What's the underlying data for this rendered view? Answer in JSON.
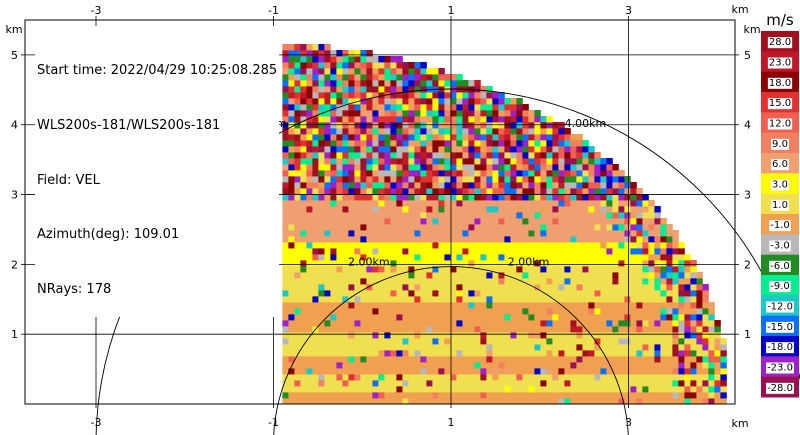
{
  "chart_data": {
    "type": "heatmap",
    "title_block": [
      "Start time: 2022/04/29 10:25:08.285",
      "WLS200s-181/WLS200s-181",
      "Field: VEL",
      "Azimuth(deg): 109.01",
      "NRays: 178"
    ],
    "x_axis": {
      "unit": "km",
      "range": [
        -3.8,
        4.2
      ],
      "ticks": [
        -3,
        -1,
        1,
        3
      ],
      "tick_labels": [
        "-3",
        "-1",
        "1",
        "3"
      ]
    },
    "y_axis": {
      "unit": "km",
      "range": [
        0,
        5.5
      ],
      "ticks": [
        1,
        2,
        3,
        4,
        5
      ],
      "tick_labels": [
        "1",
        "2",
        "3",
        "4",
        "5"
      ]
    },
    "grid": true,
    "range_rings": [
      {
        "radius_km": 2.0,
        "label": "2.00km"
      },
      {
        "radius_km": 4.0,
        "label": "4.00km"
      }
    ],
    "sector": {
      "origin_km": [
        0.0,
        0.0
      ],
      "azimuth_span_deg": [
        0,
        90
      ],
      "max_range_km": 5.1,
      "x_start_km": -0.9
    },
    "bands": [
      {
        "y": [
          0.0,
          0.15
        ],
        "level": "-1.0"
      },
      {
        "y": [
          0.15,
          0.45
        ],
        "level": "1.0"
      },
      {
        "y": [
          0.45,
          0.7
        ],
        "level": "-1.0"
      },
      {
        "y": [
          0.7,
          1.05
        ],
        "level": "1.0"
      },
      {
        "y": [
          1.05,
          1.5
        ],
        "level": "-1.0"
      },
      {
        "y": [
          1.5,
          2.0
        ],
        "level": "1.0"
      },
      {
        "y": [
          2.0,
          2.35
        ],
        "level": "3.0"
      },
      {
        "y": [
          2.35,
          2.9
        ],
        "level": "6.0"
      }
    ],
    "colorbar": {
      "unit": "m/s",
      "labels": [
        "28.0",
        "23.0",
        "18.0",
        "15.0",
        "12.0",
        "9.0",
        "6.0",
        "3.0",
        "1.0",
        "-1.0",
        "-3.0",
        "-6.0",
        "-9.0",
        "-12.0",
        "-15.0",
        "-18.0",
        "-23.0",
        "-28.0"
      ],
      "colors": [
        "#a01020",
        "#c01828",
        "#8b0000",
        "#e03030",
        "#f06050",
        "#f08060",
        "#f0a070",
        "#ffff00",
        "#f0e050",
        "#f0a050",
        "#b8b8b8",
        "#228b22",
        "#00ee90",
        "#1ec8c8",
        "#0a70ff",
        "#0000c8",
        "#a020c8",
        "#9b1050"
      ]
    }
  }
}
